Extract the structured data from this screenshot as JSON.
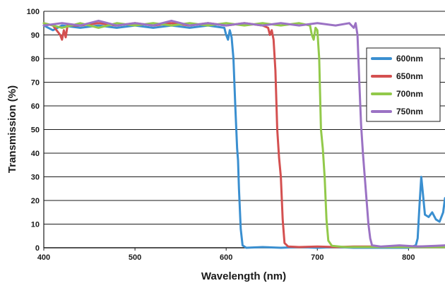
{
  "chart_data": {
    "type": "line",
    "title": "",
    "xlabel": "Wavelength (nm)",
    "ylabel": "Transmission (%)",
    "xlim": [
      400,
      840
    ],
    "ylim": [
      0,
      100
    ],
    "x_ticks": [
      400,
      500,
      600,
      700,
      800
    ],
    "y_ticks": [
      0,
      10,
      20,
      30,
      40,
      50,
      60,
      70,
      80,
      90,
      100
    ],
    "grid": "horizontal",
    "legend_position": "right",
    "series": [
      {
        "name": "600nm",
        "color": "#3a8fd0",
        "points": [
          [
            400,
            94
          ],
          [
            410,
            92
          ],
          [
            420,
            94
          ],
          [
            440,
            93
          ],
          [
            460,
            94
          ],
          [
            480,
            93
          ],
          [
            500,
            94
          ],
          [
            520,
            93
          ],
          [
            540,
            94
          ],
          [
            560,
            93
          ],
          [
            580,
            94
          ],
          [
            598,
            93
          ],
          [
            600,
            90
          ],
          [
            602,
            88
          ],
          [
            604,
            92
          ],
          [
            606,
            89
          ],
          [
            608,
            80
          ],
          [
            610,
            60
          ],
          [
            612,
            42
          ],
          [
            613,
            37
          ],
          [
            614,
            25
          ],
          [
            616,
            8
          ],
          [
            618,
            1
          ],
          [
            622,
            0
          ],
          [
            640,
            0.3
          ],
          [
            660,
            0
          ],
          [
            680,
            0.3
          ],
          [
            700,
            0
          ],
          [
            720,
            0.3
          ],
          [
            740,
            0
          ],
          [
            760,
            0
          ],
          [
            780,
            0
          ],
          [
            800,
            0
          ],
          [
            808,
            1
          ],
          [
            810,
            4
          ],
          [
            812,
            18
          ],
          [
            814,
            30
          ],
          [
            816,
            22
          ],
          [
            818,
            14
          ],
          [
            822,
            13
          ],
          [
            826,
            15
          ],
          [
            830,
            12
          ],
          [
            834,
            11
          ],
          [
            838,
            15
          ],
          [
            840,
            21
          ]
        ]
      },
      {
        "name": "650nm",
        "color": "#d45050",
        "points": [
          [
            400,
            95
          ],
          [
            410,
            94
          ],
          [
            418,
            90
          ],
          [
            420,
            88
          ],
          [
            422,
            92
          ],
          [
            424,
            89
          ],
          [
            426,
            94
          ],
          [
            440,
            94
          ],
          [
            460,
            95
          ],
          [
            480,
            94
          ],
          [
            500,
            95
          ],
          [
            520,
            94
          ],
          [
            540,
            95
          ],
          [
            560,
            94
          ],
          [
            580,
            95
          ],
          [
            600,
            94
          ],
          [
            620,
            95
          ],
          [
            640,
            94
          ],
          [
            646,
            93
          ],
          [
            648,
            90
          ],
          [
            650,
            92
          ],
          [
            652,
            88
          ],
          [
            654,
            75
          ],
          [
            656,
            50
          ],
          [
            658,
            38
          ],
          [
            660,
            30
          ],
          [
            662,
            12
          ],
          [
            664,
            2
          ],
          [
            668,
            0.5
          ],
          [
            680,
            0.3
          ],
          [
            700,
            0.5
          ],
          [
            720,
            0.3
          ],
          [
            740,
            0.5
          ],
          [
            760,
            0.5
          ],
          [
            780,
            0.3
          ],
          [
            800,
            0.5
          ],
          [
            820,
            0.5
          ],
          [
            840,
            0.8
          ]
        ]
      },
      {
        "name": "700nm",
        "color": "#92c94a",
        "points": [
          [
            400,
            95
          ],
          [
            420,
            93
          ],
          [
            440,
            95
          ],
          [
            460,
            93
          ],
          [
            480,
            95
          ],
          [
            500,
            94
          ],
          [
            520,
            95
          ],
          [
            540,
            94
          ],
          [
            560,
            95
          ],
          [
            580,
            94
          ],
          [
            600,
            95
          ],
          [
            620,
            94
          ],
          [
            640,
            95
          ],
          [
            660,
            94
          ],
          [
            680,
            95
          ],
          [
            692,
            94
          ],
          [
            694,
            90
          ],
          [
            696,
            88
          ],
          [
            698,
            93
          ],
          [
            700,
            92
          ],
          [
            702,
            80
          ],
          [
            704,
            50
          ],
          [
            706,
            42
          ],
          [
            708,
            30
          ],
          [
            710,
            12
          ],
          [
            712,
            3
          ],
          [
            716,
            0.8
          ],
          [
            730,
            0.3
          ],
          [
            760,
            0.3
          ],
          [
            790,
            0.3
          ],
          [
            820,
            0.3
          ],
          [
            840,
            0.3
          ]
        ]
      },
      {
        "name": "750nm",
        "color": "#9b72c4",
        "points": [
          [
            400,
            94
          ],
          [
            420,
            95
          ],
          [
            440,
            94
          ],
          [
            460,
            96
          ],
          [
            480,
            94
          ],
          [
            500,
            95
          ],
          [
            520,
            94
          ],
          [
            540,
            96
          ],
          [
            560,
            94
          ],
          [
            580,
            95
          ],
          [
            600,
            94
          ],
          [
            620,
            95
          ],
          [
            640,
            94
          ],
          [
            660,
            95
          ],
          [
            680,
            94
          ],
          [
            700,
            95
          ],
          [
            720,
            94
          ],
          [
            735,
            95
          ],
          [
            740,
            93
          ],
          [
            742,
            95
          ],
          [
            744,
            90
          ],
          [
            746,
            70
          ],
          [
            748,
            52
          ],
          [
            750,
            40
          ],
          [
            752,
            30
          ],
          [
            754,
            20
          ],
          [
            756,
            10
          ],
          [
            758,
            4
          ],
          [
            760,
            1
          ],
          [
            770,
            0.5
          ],
          [
            790,
            1
          ],
          [
            810,
            0.5
          ],
          [
            830,
            0.8
          ],
          [
            840,
            1
          ]
        ]
      }
    ]
  }
}
